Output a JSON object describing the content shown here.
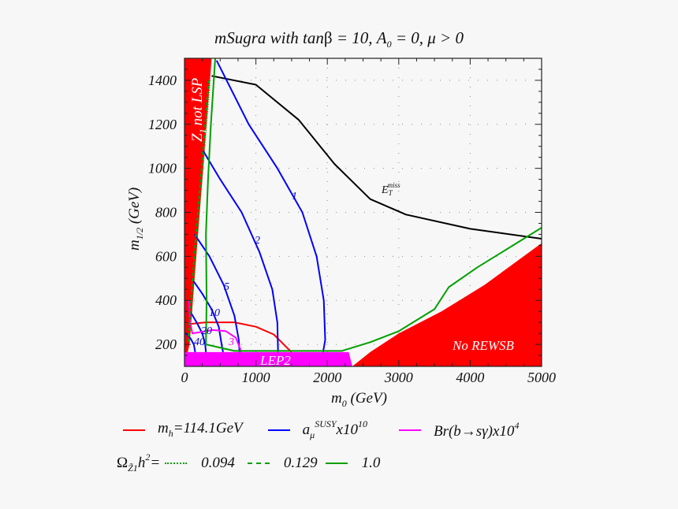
{
  "chart_data": {
    "type": "line",
    "title": "mSugra with tanβ = 10, A0 = 0, μ > 0",
    "xlabel": "m0 (GeV)",
    "ylabel": "m1/2 (GeV)",
    "xlim": [
      0,
      5000
    ],
    "ylim": [
      100,
      1500
    ],
    "xticks": [
      0,
      1000,
      2000,
      3000,
      4000,
      5000
    ],
    "yticks": [
      200,
      400,
      600,
      800,
      1000,
      1200,
      1400
    ],
    "grid": "dotted",
    "regions": [
      {
        "name": "Z1 not LSP",
        "color": "#ff0000",
        "polygon": [
          [
            0,
            100
          ],
          [
            0,
            1500
          ],
          [
            380,
            1500
          ],
          [
            70,
            200
          ]
        ]
      },
      {
        "name": "LEP2",
        "color": "#ff00ff",
        "polygon": [
          [
            0,
            100
          ],
          [
            0,
            165
          ],
          [
            2300,
            165
          ],
          [
            2350,
            100
          ]
        ]
      },
      {
        "name": "No REWSB",
        "color": "#ff0000",
        "polygon": [
          [
            2350,
            100
          ],
          [
            2600,
            165
          ],
          [
            3000,
            250
          ],
          [
            3600,
            350
          ],
          [
            4200,
            470
          ],
          [
            5000,
            660
          ],
          [
            5000,
            100
          ]
        ]
      }
    ],
    "series": [
      {
        "name": "E_T^miss reach",
        "color": "#000000",
        "style": "solid",
        "points": [
          [
            380,
            1420
          ],
          [
            1000,
            1380
          ],
          [
            1600,
            1220
          ],
          [
            2100,
            1020
          ],
          [
            2600,
            860
          ],
          [
            3100,
            790
          ],
          [
            4000,
            725
          ],
          [
            5000,
            680
          ]
        ]
      },
      {
        "name": "m_h=114.1GeV",
        "color": "#ff0000",
        "style": "solid",
        "points": [
          [
            0,
            290
          ],
          [
            300,
            300
          ],
          [
            700,
            300
          ],
          [
            1000,
            280
          ],
          [
            1250,
            245
          ],
          [
            1450,
            180
          ],
          [
            1500,
            165
          ]
        ]
      },
      {
        "name": "a_mu^SUSY x10^10 = 1",
        "color": "#0000ff",
        "label": "1",
        "points": [
          [
            450,
            1490
          ],
          [
            900,
            1200
          ],
          [
            1300,
            1000
          ],
          [
            1650,
            800
          ],
          [
            1850,
            600
          ],
          [
            1950,
            400
          ],
          [
            1970,
            220
          ],
          [
            1940,
            165
          ]
        ]
      },
      {
        "name": "a_mu^SUSY x10^10 = 2",
        "color": "#0000ff",
        "label": "2",
        "points": [
          [
            260,
            1080
          ],
          [
            500,
            950
          ],
          [
            800,
            800
          ],
          [
            1050,
            620
          ],
          [
            1230,
            450
          ],
          [
            1300,
            300
          ],
          [
            1310,
            165
          ]
        ]
      },
      {
        "name": "a_mu^SUSY x10^10 = 5",
        "color": "#0000ff",
        "label": "5",
        "points": [
          [
            140,
            700
          ],
          [
            350,
            600
          ],
          [
            550,
            470
          ],
          [
            700,
            330
          ],
          [
            760,
            220
          ],
          [
            770,
            165
          ]
        ]
      },
      {
        "name": "a_mu^SUSY x10^10 = 10",
        "color": "#0000ff",
        "label": "10",
        "points": [
          [
            100,
            500
          ],
          [
            250,
            430
          ],
          [
            380,
            360
          ],
          [
            480,
            280
          ],
          [
            520,
            200
          ],
          [
            540,
            165
          ]
        ]
      },
      {
        "name": "a_mu^SUSY x10^10 = 20",
        "color": "#0000ff",
        "label": "20",
        "points": [
          [
            80,
            350
          ],
          [
            170,
            300
          ],
          [
            250,
            250
          ],
          [
            290,
            200
          ],
          [
            300,
            165
          ]
        ]
      },
      {
        "name": "a_mu^SUSY x10^10 = 40",
        "color": "#0000ff",
        "label": "40",
        "points": [
          [
            20,
            250
          ],
          [
            80,
            230
          ],
          [
            130,
            200
          ],
          [
            150,
            165
          ]
        ]
      },
      {
        "name": "Br(b->s gamma) x10^4 = 3",
        "color": "#ff00ff",
        "label": "3",
        "points": [
          [
            60,
            400
          ],
          [
            80,
            300
          ],
          [
            110,
            250
          ],
          [
            400,
            265
          ],
          [
            580,
            260
          ],
          [
            720,
            230
          ],
          [
            780,
            180
          ],
          [
            790,
            165
          ]
        ]
      },
      {
        "name": "Omega h^2 = 1.0",
        "color": "#00a000",
        "style": "solid",
        "points": [
          [
            430,
            1500
          ],
          [
            370,
            1200
          ],
          [
            330,
            950
          ],
          [
            300,
            700
          ],
          [
            310,
            400
          ],
          [
            300,
            200
          ],
          [
            700,
            170
          ],
          [
            2200,
            170
          ],
          [
            2600,
            210
          ],
          [
            3000,
            260
          ],
          [
            3500,
            360
          ],
          [
            3700,
            460
          ],
          [
            4100,
            550
          ],
          [
            4500,
            630
          ],
          [
            5000,
            730
          ]
        ]
      },
      {
        "name": "Omega h^2 = 0.129",
        "color": "#00a000",
        "style": "dashed",
        "points": [
          [
            340,
            1400
          ],
          [
            240,
            1000
          ],
          [
            160,
            700
          ],
          [
            90,
            400
          ],
          [
            50,
            200
          ]
        ]
      },
      {
        "name": "Omega h^2 = 0.094",
        "color": "#00a000",
        "style": "dotted",
        "points": [
          [
            360,
            1400
          ],
          [
            260,
            1000
          ],
          [
            180,
            700
          ],
          [
            110,
            400
          ],
          [
            70,
            200
          ]
        ]
      }
    ],
    "annotations": [
      "Z1 not LSP",
      "LEP2",
      "No REWSB",
      "E_T^miss",
      "1",
      "2",
      "5",
      "10",
      "20",
      "40",
      "3"
    ],
    "legend": [
      {
        "label": "m_h=114.1GeV",
        "color": "#ff0000"
      },
      {
        "label": "a_mu^SUSY x10^10",
        "color": "#0000ff"
      },
      {
        "label": "Br(b→sγ)x10^4",
        "color": "#ff00ff"
      },
      {
        "label": "Ω_Z1 h^2 = 0.094",
        "color": "#00a000",
        "style": "dotted"
      },
      {
        "label": "0.129",
        "color": "#00a000",
        "style": "dashed"
      },
      {
        "label": "1.0",
        "color": "#00a000",
        "style": "solid"
      }
    ]
  },
  "title": {
    "main": "mSugra with tan",
    "beta": "β",
    "rest1": " = 10, A",
    "sub0": "0",
    "rest2": " = 0, μ > 0"
  },
  "axes": {
    "x_label": "m",
    "x_label_sub": "0",
    "x_label_unit": " (GeV)",
    "y_label": "m",
    "y_label_sub": "1/2",
    "y_label_unit": " (GeV)"
  },
  "regions": {
    "z1": "not LSP",
    "z1_main": "Z",
    "z1_sub": "1",
    "lep2": "LEP2",
    "rewsb": "No REWSB"
  },
  "labels": {
    "etmiss_main": "E",
    "etmiss_sub": "T",
    "etmiss_sup": "miss"
  },
  "legend": {
    "mh": {
      "main": "m",
      "sub": "h",
      "rest": "=114.1GeV"
    },
    "amu": {
      "main": "a",
      "sub": "μ",
      "sup": "SUSY",
      "rest": "x10",
      "sup2": "10"
    },
    "bsg": {
      "main": "Br(b→sγ)x10",
      "sup": "4"
    },
    "omega": {
      "main": "Ω",
      "sub": "Z̃1",
      "h": "h",
      "sup": "2",
      "eq": "=",
      "v1": "0.094",
      "v2": "0.129",
      "v3": "1.0"
    }
  }
}
